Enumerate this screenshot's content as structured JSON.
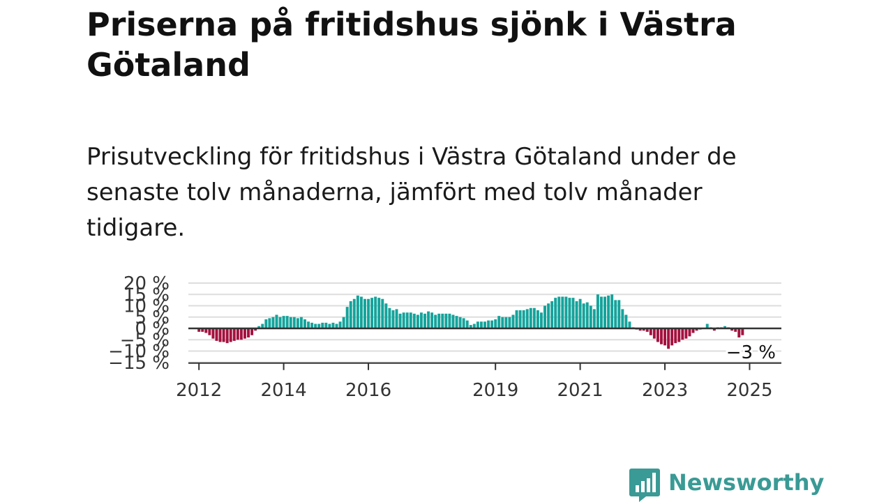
{
  "title": "Priserna på fritidshus sjönk i Västra Götaland",
  "subtitle": "Prisutveckling för fritidshus i Västra Götaland under de senaste tolv månaderna, jämfört med tolv månader tidigare.",
  "brand": {
    "name": "Newsworthy",
    "icon": "newsworthy-chat-bars-icon",
    "color": "#3a9a95"
  },
  "chart_data": {
    "type": "bar",
    "ylabel": "",
    "xlabel": "",
    "ylim": [
      -15,
      20
    ],
    "y_ticks": [
      20,
      15,
      10,
      5,
      0,
      -5,
      -10,
      -15
    ],
    "y_tick_labels": [
      "20 %",
      "15 %",
      "10 %",
      "5 %",
      "0 %",
      "−5 %",
      "−10 %",
      "−15 %"
    ],
    "x_range": [
      2011.75,
      2025.75
    ],
    "x_ticks": [
      2012,
      2014,
      2016,
      2019,
      2021,
      2023,
      2025
    ],
    "x_tick_labels": [
      "2012",
      "2014",
      "2016",
      "2019",
      "2021",
      "2023",
      "2025"
    ],
    "grid": true,
    "colors": {
      "positive": "#15a39b",
      "negative": "#a3123f",
      "grid": "#dddddd",
      "zero": "#333333"
    },
    "annotation": {
      "text": "−3 %"
    },
    "start": "2012-01",
    "frequency": "monthly",
    "values": [
      -1.5,
      -1.5,
      -2,
      -3,
      -4.5,
      -5.5,
      -6,
      -6,
      -6.5,
      -6,
      -5.5,
      -5,
      -5,
      -4.5,
      -4,
      -3,
      -1,
      1,
      2,
      4,
      4.5,
      5,
      6,
      5,
      5.5,
      5.5,
      5,
      5,
      4.5,
      5,
      4,
      3,
      2.5,
      2,
      2,
      2.5,
      2.5,
      2,
      2.5,
      2,
      3,
      5,
      9.5,
      12,
      13,
      14.5,
      14,
      13,
      13,
      13.5,
      14,
      13.5,
      13,
      11,
      9,
      8,
      8.5,
      6.5,
      7,
      7,
      7,
      6.5,
      6,
      7,
      6.5,
      7.5,
      7,
      6,
      6.5,
      6.5,
      6.5,
      6.5,
      6,
      5.5,
      5,
      4.5,
      3.5,
      1.5,
      2,
      3,
      3,
      3,
      3.5,
      3.5,
      4,
      5.5,
      5,
      5,
      5,
      6,
      8,
      8,
      8,
      8.5,
      9,
      9,
      8,
      7,
      10,
      11,
      12,
      13.5,
      14,
      14,
      14,
      13.5,
      13.5,
      12,
      13,
      11,
      11.5,
      10,
      8.5,
      15,
      14,
      14,
      14.5,
      15,
      12.5,
      12.5,
      8.5,
      6,
      3,
      0.5,
      -0.5,
      -1,
      -1,
      -1.5,
      -3,
      -4.5,
      -6,
      -7,
      -7.5,
      -9,
      -7.5,
      -6.5,
      -6,
      -5,
      -4.5,
      -3.5,
      -2,
      -1,
      -0.5,
      0,
      2,
      0.5,
      -1,
      0.5,
      0.5,
      1,
      0.5,
      -1,
      -1.5,
      -4,
      -3
    ]
  }
}
